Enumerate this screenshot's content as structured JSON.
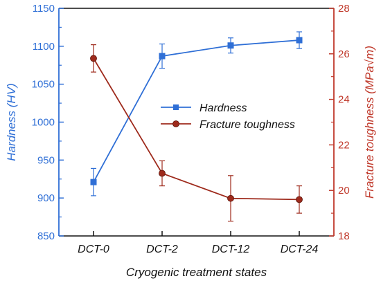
{
  "chart_data": {
    "type": "line",
    "categories": [
      "DCT-0",
      "DCT-2",
      "DCT-12",
      "DCT-24"
    ],
    "xlabel": "Cryogenic treatment states",
    "left_axis": {
      "label": "Hardness (HV)",
      "ylim": [
        850,
        1150
      ],
      "ticks": [
        "850",
        "900",
        "950",
        "1000",
        "1050",
        "1100",
        "1150"
      ],
      "color": "#2f6fd6"
    },
    "right_axis": {
      "label": "Fracture toughness (MPa√m)",
      "ylim": [
        18,
        28
      ],
      "ticks": [
        "18",
        "20",
        "22",
        "24",
        "26",
        "28"
      ],
      "color": "#c0392b"
    },
    "series": [
      {
        "name": "Hardness",
        "axis": "left",
        "marker": "square",
        "color": "#2f6fd6",
        "values": [
          921,
          1087,
          1101,
          1108
        ],
        "errors": [
          18,
          16,
          10,
          11
        ]
      },
      {
        "name": "Fracture toughness",
        "axis": "right",
        "marker": "circle",
        "color": "#9e2a1c",
        "values": [
          25.8,
          20.75,
          19.65,
          19.6
        ],
        "errors": [
          0.6,
          0.55,
          1.0,
          0.6
        ]
      }
    ],
    "legend_position": "center-right",
    "grid": false
  }
}
